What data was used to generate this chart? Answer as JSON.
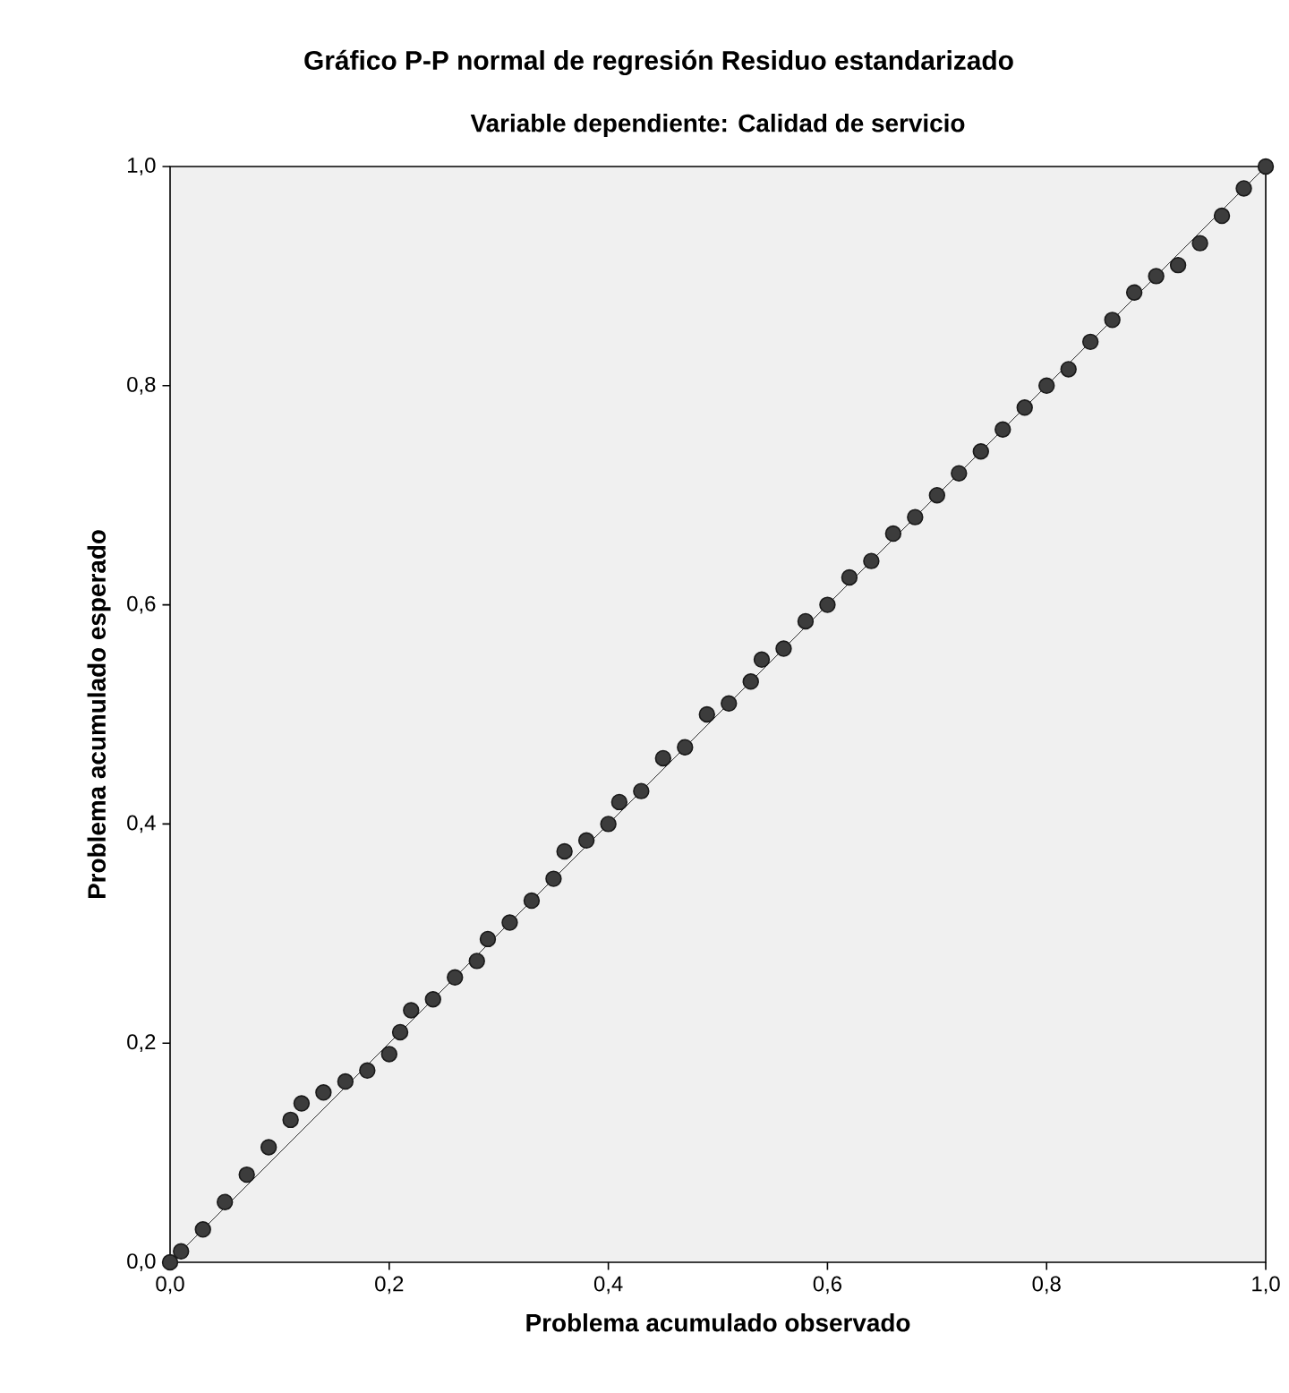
{
  "chart_data": {
    "type": "scatter",
    "title": "Gráfico P-P normal de regresión Residuo estandarizado",
    "subtitle": "Variable dependiente: Calidad de servicio",
    "xlabel": "Problema acumulado observado",
    "ylabel": "Problema acumulado esperado",
    "xlim": [
      0,
      1
    ],
    "ylim": [
      0,
      1
    ],
    "xticks": [
      {
        "value": 0,
        "label": "0,0"
      },
      {
        "value": 0.2,
        "label": "0,2"
      },
      {
        "value": 0.4,
        "label": "0,4"
      },
      {
        "value": 0.6,
        "label": "0,6"
      },
      {
        "value": 0.8,
        "label": "0,8"
      },
      {
        "value": 1,
        "label": "1,0"
      }
    ],
    "yticks": [
      {
        "value": 0,
        "label": "0,0"
      },
      {
        "value": 0.2,
        "label": "0,2"
      },
      {
        "value": 0.4,
        "label": "0,4"
      },
      {
        "value": 0.6,
        "label": "0,6"
      },
      {
        "value": 0.8,
        "label": "0,8"
      },
      {
        "value": 1,
        "label": "1,0"
      }
    ],
    "grid": false,
    "series": [
      {
        "type": "line",
        "color": "#000000",
        "x": [
          0,
          1
        ],
        "values": [
          0,
          1
        ]
      },
      {
        "color": "#1a1a1a",
        "x": [
          0.0,
          0.01,
          0.03,
          0.05,
          0.07,
          0.09,
          0.11,
          0.12,
          0.14,
          0.16,
          0.18,
          0.2,
          0.21,
          0.22,
          0.24,
          0.26,
          0.28,
          0.29,
          0.31,
          0.33,
          0.35,
          0.36,
          0.38,
          0.4,
          0.41,
          0.43,
          0.45,
          0.47,
          0.49,
          0.51,
          0.53,
          0.54,
          0.56,
          0.58,
          0.6,
          0.62,
          0.64,
          0.66,
          0.68,
          0.7,
          0.72,
          0.74,
          0.76,
          0.78,
          0.8,
          0.82,
          0.84,
          0.86,
          0.88,
          0.9,
          0.92,
          0.94,
          0.96,
          0.98,
          1.0
        ],
        "values": [
          0.0,
          0.01,
          0.03,
          0.055,
          0.08,
          0.105,
          0.13,
          0.145,
          0.155,
          0.165,
          0.175,
          0.19,
          0.21,
          0.23,
          0.24,
          0.26,
          0.275,
          0.295,
          0.31,
          0.33,
          0.35,
          0.375,
          0.385,
          0.4,
          0.42,
          0.43,
          0.46,
          0.47,
          0.5,
          0.51,
          0.53,
          0.55,
          0.56,
          0.585,
          0.6,
          0.625,
          0.64,
          0.665,
          0.68,
          0.7,
          0.72,
          0.74,
          0.76,
          0.78,
          0.8,
          0.815,
          0.84,
          0.86,
          0.885,
          0.9,
          0.91,
          0.93,
          0.955,
          0.98,
          1.0
        ]
      }
    ]
  }
}
